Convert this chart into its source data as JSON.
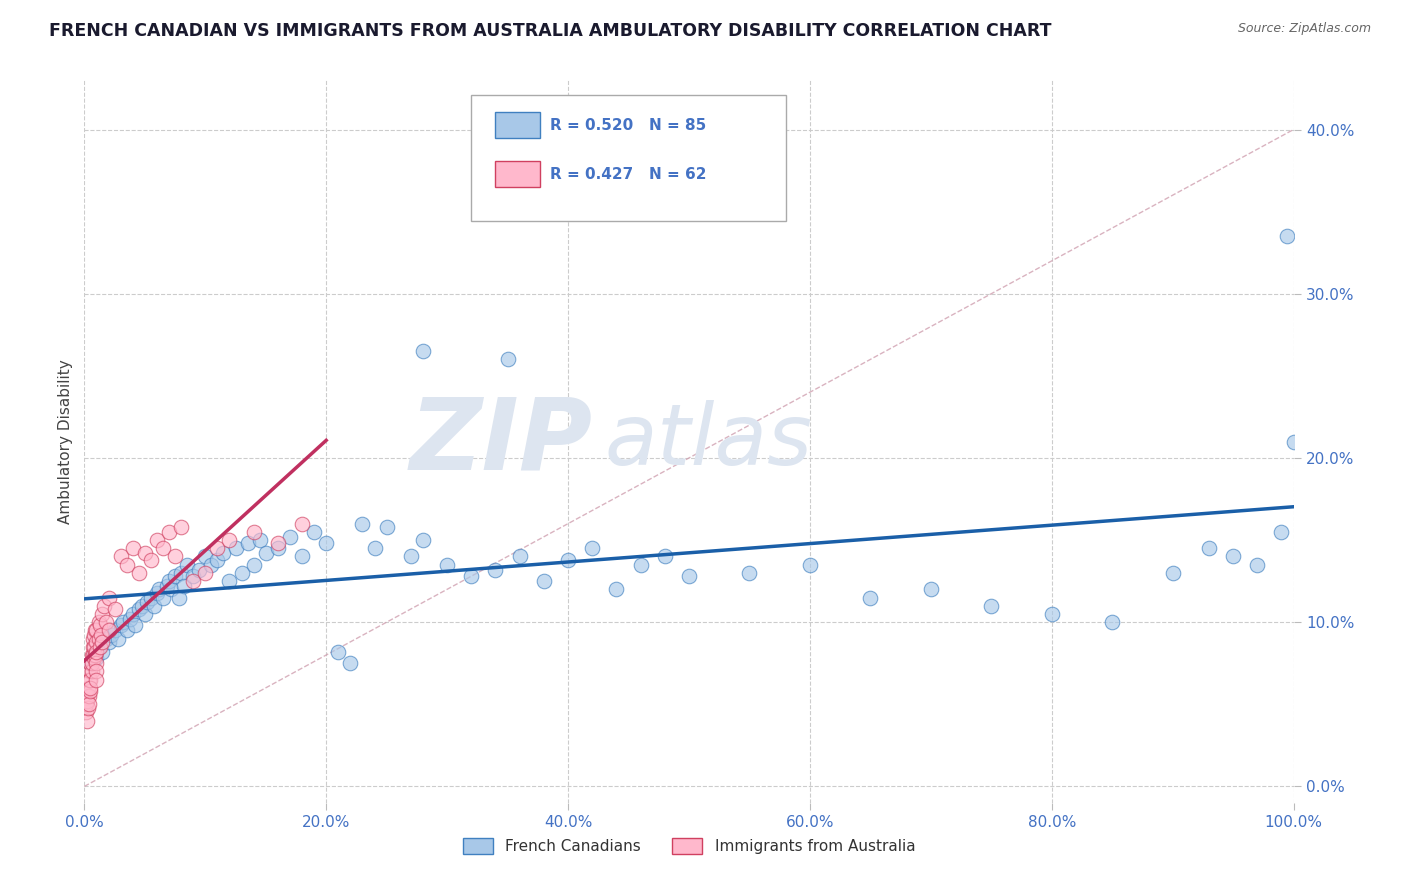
{
  "title": "FRENCH CANADIAN VS IMMIGRANTS FROM AUSTRALIA AMBULATORY DISABILITY CORRELATION CHART",
  "source": "Source: ZipAtlas.com",
  "ylabel": "Ambulatory Disability",
  "xlim": [
    0.0,
    100.0
  ],
  "ylim": [
    -1.0,
    43.0
  ],
  "x_ticks": [
    0.0,
    20.0,
    40.0,
    60.0,
    80.0,
    100.0
  ],
  "y_ticks": [
    0.0,
    10.0,
    20.0,
    30.0,
    40.0
  ],
  "french_canadians": {
    "label": "French Canadians",
    "R": 0.52,
    "N": 85,
    "color": "#a8c8e8",
    "edge_color": "#4080c0",
    "x": [
      0.5,
      0.8,
      1.0,
      1.2,
      1.5,
      1.8,
      2.0,
      2.2,
      2.5,
      2.8,
      3.0,
      3.2,
      3.5,
      3.8,
      4.0,
      4.2,
      4.5,
      4.8,
      5.0,
      5.2,
      5.5,
      5.8,
      6.0,
      6.2,
      6.5,
      6.8,
      7.0,
      7.2,
      7.5,
      7.8,
      8.0,
      8.2,
      8.5,
      9.0,
      9.5,
      10.0,
      10.5,
      11.0,
      11.5,
      12.0,
      12.5,
      13.0,
      13.5,
      14.0,
      14.5,
      15.0,
      16.0,
      17.0,
      18.0,
      19.0,
      20.0,
      21.0,
      22.0,
      23.0,
      24.0,
      25.0,
      27.0,
      28.0,
      30.0,
      32.0,
      34.0,
      36.0,
      38.0,
      40.0,
      42.0,
      44.0,
      46.0,
      48.0,
      50.0,
      55.0,
      60.0,
      65.0,
      70.0,
      75.0,
      80.0,
      85.0,
      90.0,
      93.0,
      95.0,
      97.0,
      99.0,
      99.5,
      100.0,
      28.0,
      35.0
    ],
    "y": [
      7.5,
      8.0,
      7.8,
      8.5,
      8.2,
      9.0,
      8.8,
      9.2,
      9.5,
      9.0,
      9.8,
      10.0,
      9.5,
      10.2,
      10.5,
      9.8,
      10.8,
      11.0,
      10.5,
      11.2,
      11.5,
      11.0,
      11.8,
      12.0,
      11.5,
      12.2,
      12.5,
      12.0,
      12.8,
      11.5,
      13.0,
      12.2,
      13.5,
      12.8,
      13.2,
      14.0,
      13.5,
      13.8,
      14.2,
      12.5,
      14.5,
      13.0,
      14.8,
      13.5,
      15.0,
      14.2,
      14.5,
      15.2,
      14.0,
      15.5,
      14.8,
      8.2,
      7.5,
      16.0,
      14.5,
      15.8,
      14.0,
      15.0,
      13.5,
      12.8,
      13.2,
      14.0,
      12.5,
      13.8,
      14.5,
      12.0,
      13.5,
      14.0,
      12.8,
      13.0,
      13.5,
      11.5,
      12.0,
      11.0,
      10.5,
      10.0,
      13.0,
      14.5,
      14.0,
      13.5,
      15.5,
      33.5,
      21.0,
      26.5,
      26.0
    ]
  },
  "immigrants_australia": {
    "label": "Immigrants from Australia",
    "R": 0.427,
    "N": 62,
    "color": "#ffb8cc",
    "edge_color": "#d04060",
    "x": [
      0.1,
      0.15,
      0.2,
      0.2,
      0.25,
      0.3,
      0.3,
      0.35,
      0.4,
      0.4,
      0.45,
      0.5,
      0.5,
      0.5,
      0.5,
      0.6,
      0.6,
      0.6,
      0.7,
      0.7,
      0.7,
      0.8,
      0.8,
      0.8,
      0.9,
      0.9,
      1.0,
      1.0,
      1.0,
      1.0,
      1.0,
      1.0,
      1.2,
      1.2,
      1.3,
      1.3,
      1.4,
      1.5,
      1.5,
      1.6,
      1.8,
      2.0,
      2.0,
      2.5,
      3.0,
      3.5,
      4.0,
      4.5,
      5.0,
      5.5,
      6.0,
      6.5,
      7.0,
      7.5,
      8.0,
      9.0,
      10.0,
      11.0,
      12.0,
      14.0,
      16.0,
      18.0
    ],
    "y": [
      4.5,
      5.0,
      4.0,
      5.5,
      5.2,
      4.8,
      6.0,
      5.5,
      5.0,
      6.5,
      5.8,
      7.0,
      6.5,
      6.0,
      7.5,
      7.0,
      8.0,
      7.5,
      8.5,
      8.0,
      9.0,
      7.8,
      8.5,
      9.2,
      8.0,
      9.5,
      7.5,
      8.8,
      9.5,
      8.2,
      7.0,
      6.5,
      9.0,
      10.0,
      8.5,
      9.8,
      9.2,
      10.5,
      8.8,
      11.0,
      10.0,
      11.5,
      9.5,
      10.8,
      14.0,
      13.5,
      14.5,
      13.0,
      14.2,
      13.8,
      15.0,
      14.5,
      15.5,
      14.0,
      15.8,
      12.5,
      13.0,
      14.5,
      15.0,
      15.5,
      14.8,
      16.0
    ]
  },
  "watermark_line1": "ZIP",
  "watermark_line2": "atlas",
  "watermark_color": "#dde5f0",
  "background_color": "#ffffff",
  "grid_color": "#cccccc",
  "title_color": "#1a1a2e",
  "axis_label_color": "#4472c4",
  "R_N_color": "#4472c4",
  "regression_blue": "#1a5fa8",
  "regression_pink": "#c03060",
  "diag_color": "#d0a0b0"
}
